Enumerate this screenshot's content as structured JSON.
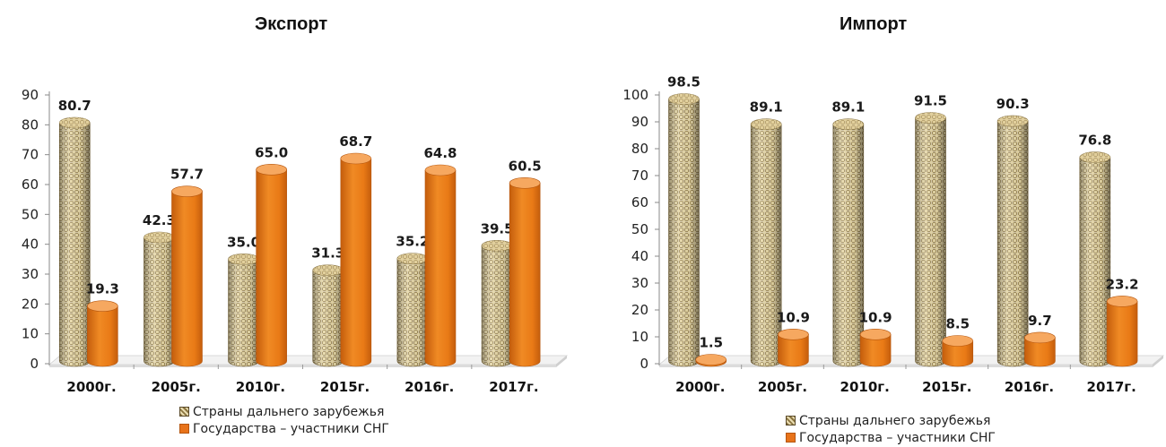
{
  "colors": {
    "woven_light": "#e6d7a6",
    "woven_dark": "#8c7644",
    "orange": "#f08a24",
    "orange_dark": "#c45d0c",
    "orange_top": "#f6a860"
  },
  "legend": {
    "series_1": "Страны дальнего зарубежья",
    "series_2": "Государства – участники СНГ"
  },
  "chart_data": [
    {
      "type": "bar",
      "title": "Экспорт",
      "categories": [
        "2000г.",
        "2005г.",
        "2010г.",
        "2015г.",
        "2016г.",
        "2017г."
      ],
      "ylim": [
        0,
        90
      ],
      "yticks": [
        0,
        10,
        20,
        30,
        40,
        50,
        60,
        70,
        80,
        90
      ],
      "grid": false,
      "legend_position": "bottom",
      "series": [
        {
          "name": "Страны дальнего зарубежья",
          "values": [
            80.7,
            42.3,
            35.0,
            31.3,
            35.2,
            39.5
          ],
          "labels": [
            "80.7",
            "42.3",
            "35.0",
            "31.3",
            "35.2",
            "39.5"
          ]
        },
        {
          "name": "Государства – участники СНГ",
          "values": [
            19.3,
            57.7,
            65.0,
            68.7,
            64.8,
            60.5
          ],
          "labels": [
            "19.3",
            "57.7",
            "65.0",
            "68.7",
            "64.8",
            "60.5"
          ]
        }
      ]
    },
    {
      "type": "bar",
      "title": "Импорт",
      "categories": [
        "2000г.",
        "2005г.",
        "2010г.",
        "2015г.",
        "2016г.",
        "2017г."
      ],
      "ylim": [
        0,
        100
      ],
      "yticks": [
        0,
        10,
        20,
        30,
        40,
        50,
        60,
        70,
        80,
        90,
        100
      ],
      "grid": false,
      "legend_position": "bottom",
      "series": [
        {
          "name": "Страны дальнего зарубежья",
          "values": [
            98.5,
            89.1,
            89.1,
            91.5,
            90.3,
            76.8
          ],
          "labels": [
            "98.5",
            "89.1",
            "89.1",
            "91.5",
            "90.3",
            "76.8"
          ]
        },
        {
          "name": "Государства – участники СНГ",
          "values": [
            1.5,
            10.9,
            10.9,
            8.5,
            9.7,
            23.2
          ],
          "labels": [
            "1.5",
            "10.9",
            "10.9",
            "8.5",
            "9.7",
            "23.2"
          ]
        }
      ]
    }
  ]
}
